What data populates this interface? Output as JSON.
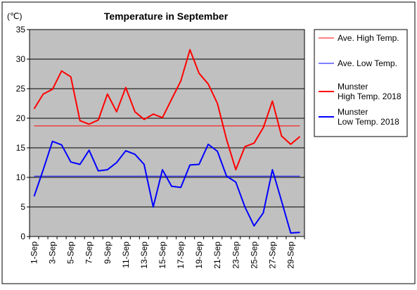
{
  "chart_data": {
    "type": "line",
    "title": "Temperature in September",
    "unit_label": "(℃)",
    "ylim": [
      0,
      35
    ],
    "yticks": [
      "0",
      "5",
      "10",
      "15",
      "20",
      "25",
      "30",
      "35"
    ],
    "categories": [
      "1-Sep",
      "2-Sep",
      "3-Sep",
      "4-Sep",
      "5-Sep",
      "6-Sep",
      "7-Sep",
      "8-Sep",
      "9-Sep",
      "10-Sep",
      "11-Sep",
      "12-Sep",
      "13-Sep",
      "14-Sep",
      "15-Sep",
      "16-Sep",
      "17-Sep",
      "18-Sep",
      "19-Sep",
      "20-Sep",
      "21-Sep",
      "22-Sep",
      "23-Sep",
      "24-Sep",
      "25-Sep",
      "26-Sep",
      "27-Sep",
      "28-Sep",
      "29-Sep",
      "30-Sep"
    ],
    "xtick_labels": [
      "1-Sep",
      "3-Sep",
      "5-Sep",
      "7-Sep",
      "9-Sep",
      "11-Sep",
      "13-Sep",
      "15-Sep",
      "17-Sep",
      "19-Sep",
      "21-Sep",
      "23-Sep",
      "25-Sep",
      "27-Sep",
      "29-Sep"
    ],
    "grid": true,
    "plot_background": "#c0c0c0",
    "legend_position": "right",
    "series": [
      {
        "name": "Ave. High Temp.",
        "color": "#ff0000",
        "width": 1,
        "values": [
          18.7,
          18.7,
          18.7,
          18.7,
          18.7,
          18.7,
          18.7,
          18.7,
          18.7,
          18.7,
          18.7,
          18.7,
          18.7,
          18.7,
          18.7,
          18.7,
          18.7,
          18.7,
          18.7,
          18.7,
          18.7,
          18.7,
          18.7,
          18.7,
          18.7,
          18.7,
          18.7,
          18.7,
          18.7,
          18.7
        ]
      },
      {
        "name": "Ave. Low Temp.",
        "color": "#0000ff",
        "width": 1,
        "values": [
          10.2,
          10.2,
          10.2,
          10.2,
          10.2,
          10.2,
          10.2,
          10.2,
          10.2,
          10.2,
          10.2,
          10.2,
          10.2,
          10.2,
          10.2,
          10.2,
          10.2,
          10.2,
          10.2,
          10.2,
          10.2,
          10.2,
          10.2,
          10.2,
          10.2,
          10.2,
          10.2,
          10.2,
          10.2,
          10.2
        ]
      },
      {
        "name": "Munster High Temp. 2018",
        "legend_lines": [
          "Munster",
          "High Temp. 2018"
        ],
        "color": "#ff0000",
        "width": 2,
        "values": [
          21.6,
          24.1,
          24.9,
          28.0,
          27.0,
          19.6,
          19.0,
          19.7,
          24.1,
          21.1,
          25.2,
          21.1,
          19.8,
          20.7,
          20.1,
          23.2,
          26.3,
          31.6,
          27.6,
          25.8,
          22.5,
          16.4,
          11.3,
          15.2,
          15.8,
          18.4,
          22.9,
          17.0,
          15.6,
          16.9
        ]
      },
      {
        "name": "Munster Low Temp. 2018",
        "legend_lines": [
          "Munster",
          "Low Temp. 2018"
        ],
        "color": "#0000ff",
        "width": 2,
        "values": [
          6.8,
          11.3,
          16.1,
          15.5,
          12.6,
          12.2,
          14.6,
          11.1,
          11.3,
          12.5,
          14.5,
          13.9,
          12.2,
          5.0,
          11.3,
          8.5,
          8.3,
          12.1,
          12.2,
          15.6,
          14.4,
          10.2,
          9.2,
          5.0,
          1.8,
          4.0,
          11.3,
          6.0,
          0.6,
          0.7
        ]
      }
    ]
  }
}
